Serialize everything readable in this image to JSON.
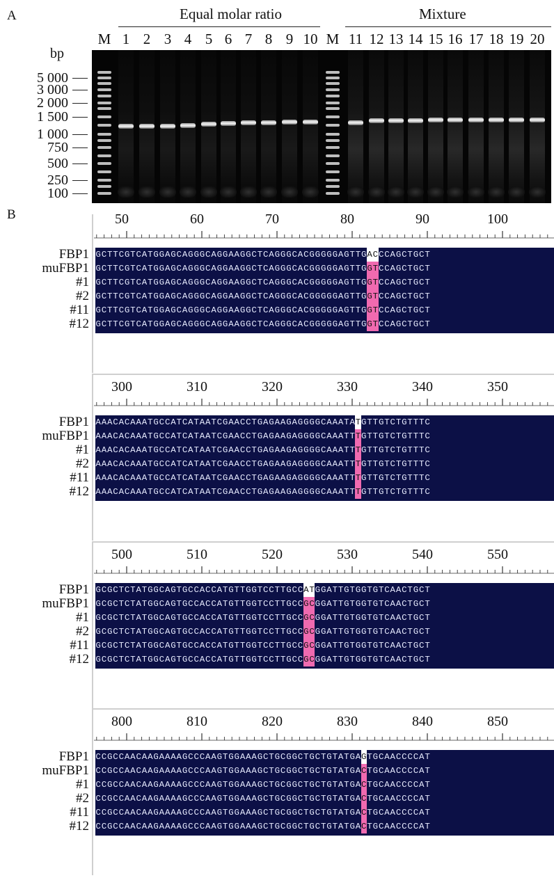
{
  "panels": {
    "a": "A",
    "b": "B"
  },
  "gel": {
    "group_left_title": "Equal molar ratio",
    "group_right_title": "Mixture",
    "lanes": [
      "M",
      "1",
      "2",
      "3",
      "4",
      "5",
      "6",
      "7",
      "8",
      "9",
      "10",
      "M",
      "11",
      "12",
      "13",
      "14",
      "15",
      "16",
      "17",
      "18",
      "19",
      "20"
    ],
    "unit": "bp",
    "marker_sizes": [
      "5 000",
      "3 000",
      "2 000",
      "1 500",
      "1 000",
      "750",
      "500",
      "250",
      "100"
    ]
  },
  "alignment": {
    "row_labels": [
      "FBP1",
      "muFBP1",
      "#1",
      "#2",
      "#11",
      "#12"
    ],
    "blocks": [
      {
        "ruler": [
          "50",
          "60",
          "70",
          "80",
          "90",
          "100"
        ],
        "rows": [
          "GCTTCGTCATGGAGCAGGGCAGGAAGGCTCAGGGCACGGGGGAGTTGACCCAGCTGCT",
          "GCTTCGTCATGGAGCAGGGCAGGAAGGCTCAGGGCACGGGGGAGTTGGTCCAGCTGCT",
          "GCTTCGTCATGGAGCAGGGCAGGAAGGCTCAGGGCACGGGGGAGTTGGTCCAGCTGCT",
          "GCTTCGTCATGGAGCAGGGCAGGAAGGCTCAGGGCACGGGGGAGTTGGTCCAGCTGCT",
          "GCTTCGTCATGGAGCAGGGCAGGAAGGCTCAGGGCACGGGGGAGTTGGTCCAGCTGCT",
          "GCTTCGTCATGGAGCAGGGCAGGAAGGCTCAGGGCACGGGGGAGTTGGTCCAGCTGCT"
        ],
        "highlight": [
          47,
          48
        ]
      },
      {
        "ruler": [
          "300",
          "310",
          "320",
          "330",
          "340",
          "350"
        ],
        "rows": [
          "AAACACAAATGCCATCATAATCGAACCTGAGAAGAGGGGCAAATATGTTGTCTGTTTC",
          "AAACACAAATGCCATCATAATCGAACCTGAGAAGAGGGGCAAATTTGTTGTCTGTTTC",
          "AAACACAAATGCCATCATAATCGAACCTGAGAAGAGGGGCAAATTTGTTGTCTGTTTC",
          "AAACACAAATGCCATCATAATCGAACCTGAGAAGAGGGGCAAATTTGTTGTCTGTTTC",
          "AAACACAAATGCCATCATAATCGAACCTGAGAAGAGGGGCAAATTTGTTGTCTGTTTC",
          "AAACACAAATGCCATCATAATCGAACCTGAGAAGAGGGGCAAATTTGTTGTCTGTTTC"
        ],
        "highlight": [
          45
        ]
      },
      {
        "ruler": [
          "500",
          "510",
          "520",
          "530",
          "540",
          "550"
        ],
        "rows": [
          "GCGCTCTATGGCAGTGCCACCATGTTGGTCCTTGCCATGGATTGTGGTGTCAACTGCT",
          "GCGCTCTATGGCAGTGCCACCATGTTGGTCCTTGCCGCGGATTGTGGTGTCAACTGCT",
          "GCGCTCTATGGCAGTGCCACCATGTTGGTCCTTGCCGCGGATTGTGGTGTCAACTGCT",
          "GCGCTCTATGGCAGTGCCACCATGTTGGTCCTTGCCGCGGATTGTGGTGTCAACTGCT",
          "GCGCTCTATGGCAGTGCCACCATGTTGGTCCTTGCCGCGGATTGTGGTGTCAACTGCT",
          "GCGCTCTATGGCAGTGCCACCATGTTGGTCCTTGCCGCGGATTGTGGTGTCAACTGCT"
        ],
        "highlight": [
          36,
          37
        ]
      },
      {
        "ruler": [
          "800",
          "810",
          "820",
          "830",
          "840",
          "850"
        ],
        "rows": [
          "CCGCCAACAAGAAAAGCCCAAGTGGAAAGCTGCGGCTGCTGTATGAGTGCAACCCCAT",
          "CCGCCAACAAGAAAAGCCCAAGTGGAAAGCTGCGGCTGCTGTATGACTGCAACCCCAT",
          "CCGCCAACAAGAAAAGCCCAAGTGGAAAGCTGCGGCTGCTGTATGACTGCAACCCCAT",
          "CCGCCAACAAGAAAAGCCCAAGTGGAAAGCTGCGGCTGCTGTATGACTGCAACCCCAT",
          "CCGCCAACAAGAAAAGCCCAAGTGGAAAGCTGCGGCTGCTGTATGACTGCAACCCCAT",
          "CCGCCAACAAGAAAAGCCCAAGTGGAAAGCTGCGGCTGCTGTATGACTGCAACCCCAT"
        ],
        "highlight": [
          46
        ]
      }
    ]
  }
}
